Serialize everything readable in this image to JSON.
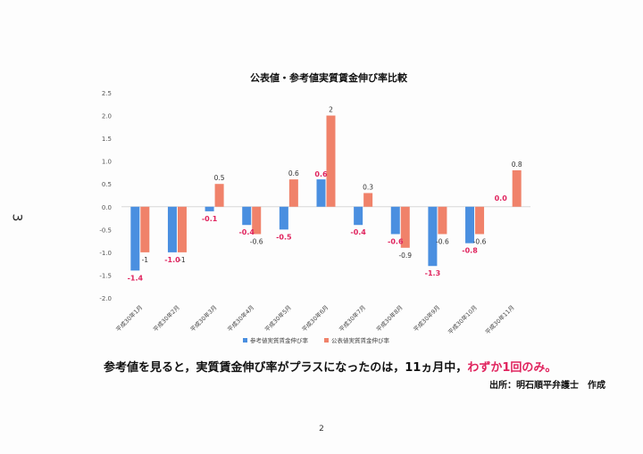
{
  "side_mark": "3",
  "page_number": "2",
  "caption": {
    "main": "参考値を見ると，実質賃金伸び率がプラスになったのは，11ヵ月中，",
    "highlight": "わずか1回のみ。"
  },
  "source": "出所：明石順平弁護士　作成",
  "colors": {
    "series1": "#4a8fe0",
    "series2": "#f0826a",
    "label1": "#e0245e",
    "label2": "#333333"
  },
  "chart_data": {
    "type": "bar",
    "title": "公表値・参考値実質賃金伸び率比較",
    "categories": [
      "平成30年1月",
      "平成30年2月",
      "平成30年3月",
      "平成30年4月",
      "平成30年5月",
      "平成30年6月",
      "平成30年7月",
      "平成30年8月",
      "平成30年9月",
      "平成30年10月",
      "平成30年11月"
    ],
    "series": [
      {
        "name": "参考値実質賃金伸び率",
        "values": [
          -1.4,
          -1.0,
          -0.1,
          -0.4,
          -0.5,
          0.6,
          -0.4,
          -0.6,
          -1.3,
          -0.8,
          0.0
        ]
      },
      {
        "name": "公表値実質賃金伸び率",
        "values": [
          -1,
          -1,
          0.5,
          -0.6,
          0.6,
          2,
          0.3,
          -0.9,
          -0.6,
          -0.6,
          0.8
        ]
      }
    ],
    "series1_labels": [
      "-1.4",
      "-1.0",
      "-0.1",
      "-0.4",
      "-0.5",
      "0.6",
      "-0.4",
      "-0.6",
      "-1.3",
      "-0.8",
      "0.0"
    ],
    "series2_labels": [
      "-1",
      "-1",
      "0.5",
      "-0.6",
      "0.6",
      "2",
      "0.3",
      "-0.9",
      "-0.6",
      "-0.6",
      "0.8"
    ],
    "yticks": [
      "2.5",
      "2.0",
      "1.5",
      "1.0",
      "0.5",
      "0.0",
      "-0.5",
      "-1.0",
      "-1.5",
      "-2.0"
    ],
    "ylim": [
      -2.0,
      2.5
    ],
    "legend_position": "bottom",
    "grid": false
  }
}
